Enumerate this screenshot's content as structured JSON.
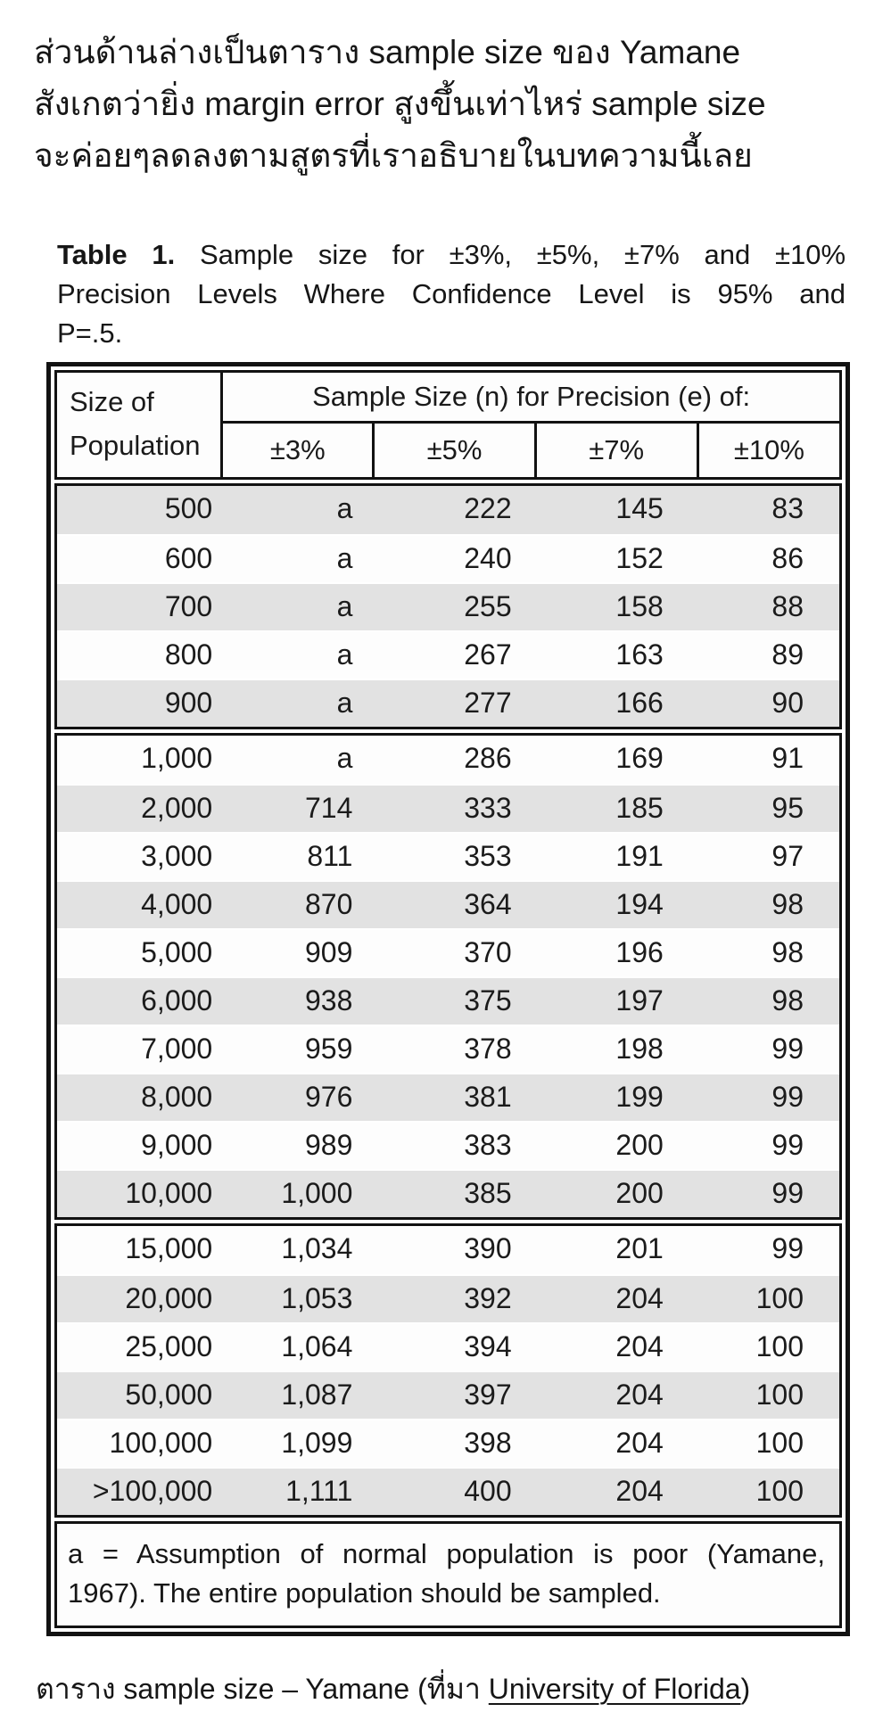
{
  "intro": {
    "lines": [
      "ส่วนด้านล่างเป็นตาราง sample size ของ Yamane",
      "สังเกตว่ายิ่ง margin error สูงขึ้นเท่าไหร่ sample size",
      "จะค่อยๆลดลงตามสูตรที่เราอธิบายในบทความนี้เลย"
    ]
  },
  "table": {
    "title": {
      "bold": "Table 1.",
      "line1_rest": "  Sample size for ±3%, ±5%, ±7% and ±10%",
      "line2": "Precision Levels Where Confidence Level is 95% and",
      "line3": "P=.5."
    },
    "header": {
      "col1_line1": "Size of",
      "col1_line2": "Population",
      "span_label": "Sample Size (n) for Precision (e) of:",
      "precision_cols": [
        "±3%",
        "±5%",
        "±7%",
        "±10%"
      ]
    },
    "columns": [
      "Size of Population",
      "±3%",
      "±5%",
      "±7%",
      "±10%"
    ],
    "sections": [
      [
        [
          "500",
          "a",
          "222",
          "145",
          "83"
        ],
        [
          "600",
          "a",
          "240",
          "152",
          "86"
        ],
        [
          "700",
          "a",
          "255",
          "158",
          "88"
        ],
        [
          "800",
          "a",
          "267",
          "163",
          "89"
        ],
        [
          "900",
          "a",
          "277",
          "166",
          "90"
        ]
      ],
      [
        [
          "1,000",
          "a",
          "286",
          "169",
          "91"
        ],
        [
          "2,000",
          "714",
          "333",
          "185",
          "95"
        ],
        [
          "3,000",
          "811",
          "353",
          "191",
          "97"
        ],
        [
          "4,000",
          "870",
          "364",
          "194",
          "98"
        ],
        [
          "5,000",
          "909",
          "370",
          "196",
          "98"
        ],
        [
          "6,000",
          "938",
          "375",
          "197",
          "98"
        ],
        [
          "7,000",
          "959",
          "378",
          "198",
          "99"
        ],
        [
          "8,000",
          "976",
          "381",
          "199",
          "99"
        ],
        [
          "9,000",
          "989",
          "383",
          "200",
          "99"
        ],
        [
          "10,000",
          "1,000",
          "385",
          "200",
          "99"
        ]
      ],
      [
        [
          "15,000",
          "1,034",
          "390",
          "201",
          "99"
        ],
        [
          "20,000",
          "1,053",
          "392",
          "204",
          "100"
        ],
        [
          "25,000",
          "1,064",
          "394",
          "204",
          "100"
        ],
        [
          "50,000",
          "1,087",
          "397",
          "204",
          "100"
        ],
        [
          "100,000",
          "1,099",
          "398",
          "204",
          "100"
        ],
        [
          ">100,000",
          "1,111",
          "400",
          "204",
          "100"
        ]
      ]
    ],
    "footnote": {
      "line1": "a = Assumption of normal population is poor (Yamane,",
      "line2": "1967).  The entire population should be sampled."
    },
    "colors": {
      "shade_row": "#e2e2e2",
      "border": "#121212"
    }
  },
  "caption": {
    "prefix": "ตาราง sample size – Yamane (ที่มา ",
    "link_text": "University of Florida",
    "suffix": ")"
  }
}
